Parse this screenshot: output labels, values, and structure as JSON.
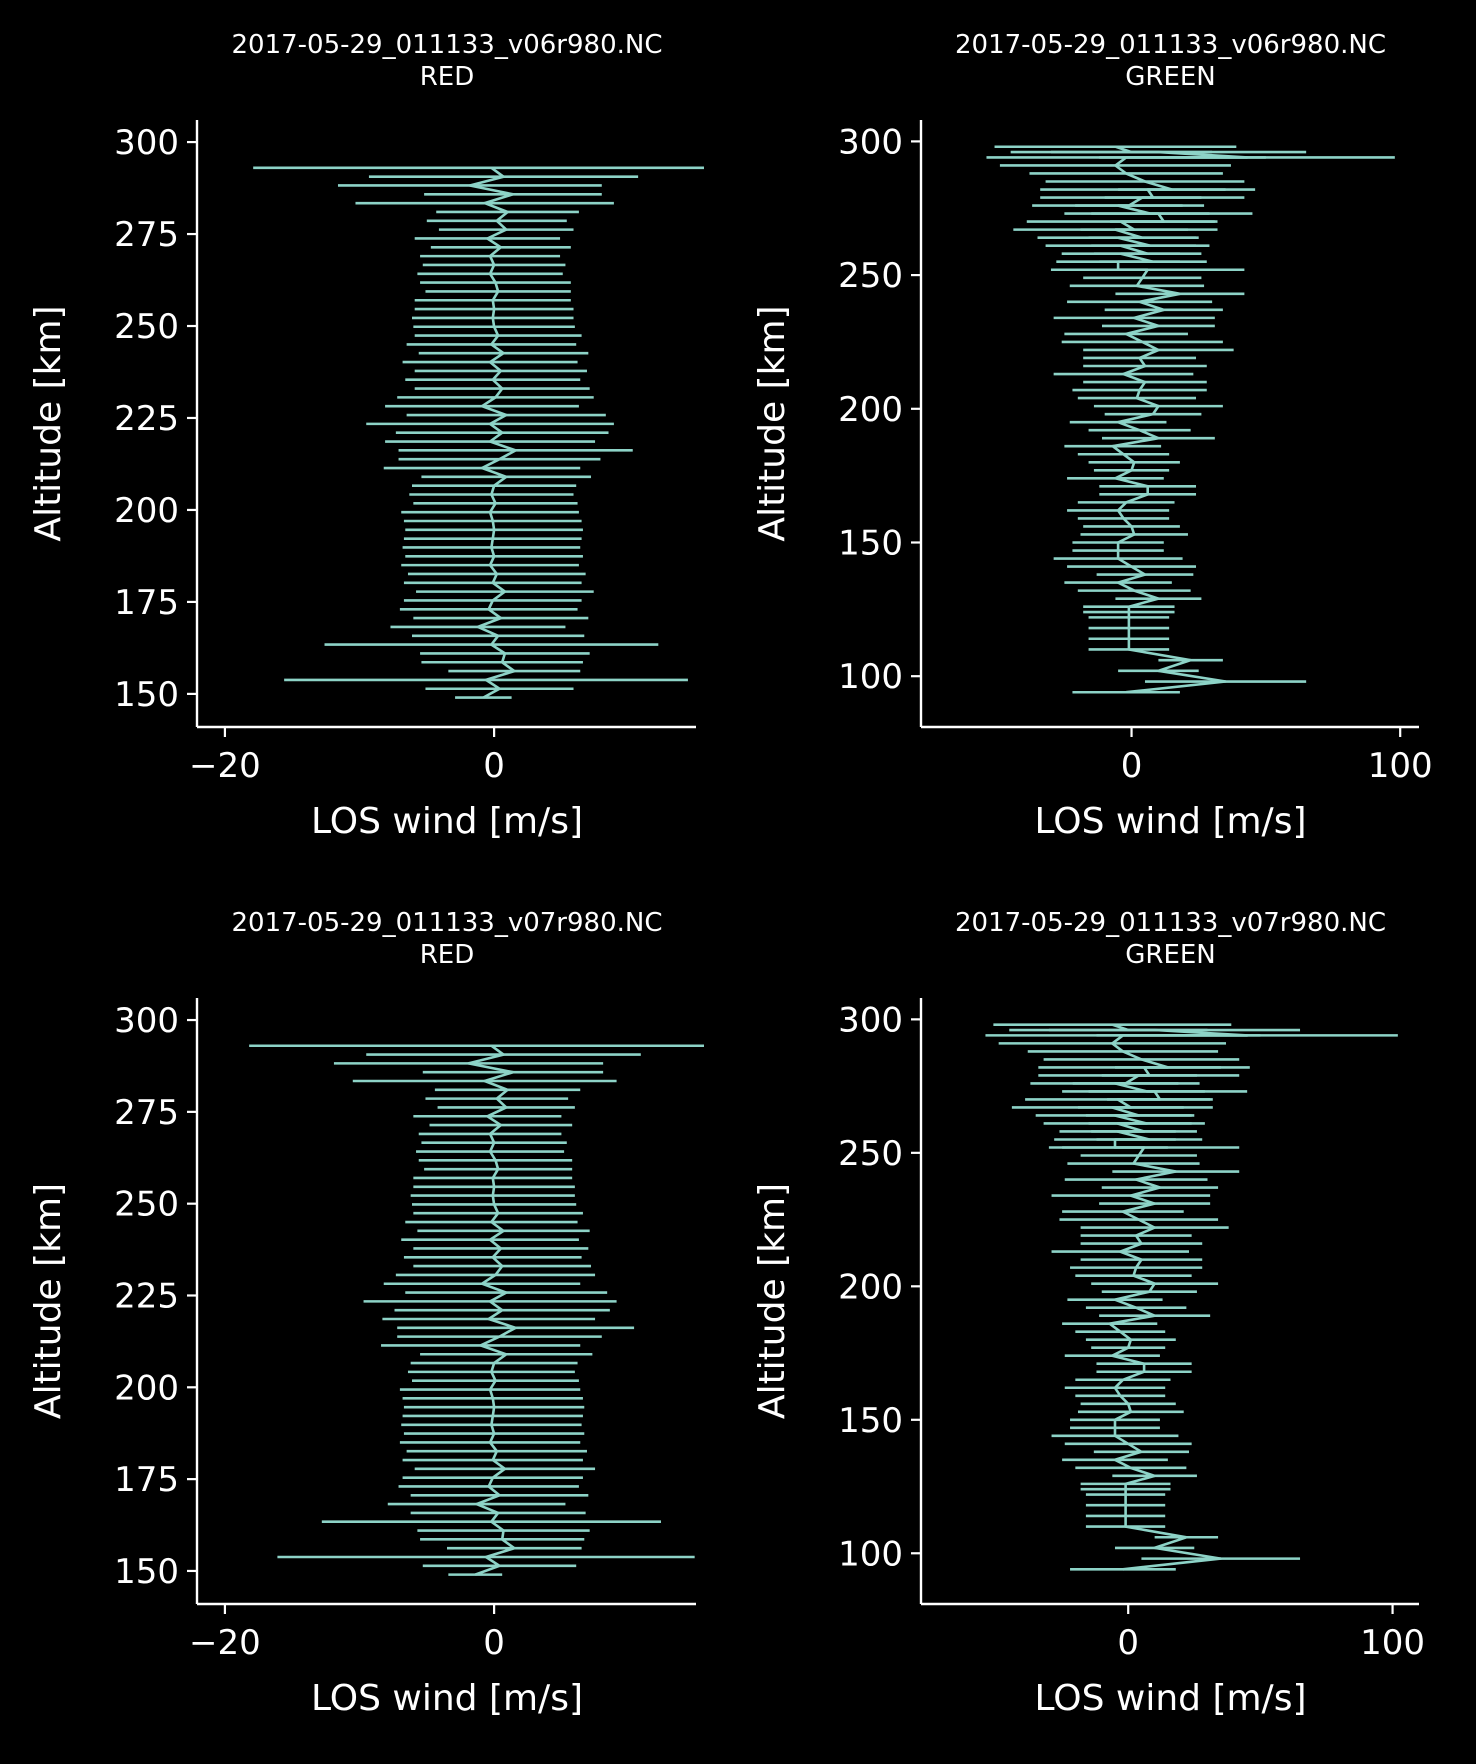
{
  "figure": {
    "background": "#000000",
    "foreground": "#ffffff",
    "line_color": "#8dd3c7"
  },
  "chart_data": [
    {
      "type": "line",
      "title": "2017-05-29_011133_v06r980.NC",
      "subtitle": "RED",
      "xlabel": "LOS wind [m/s]",
      "ylabel": "Altitude [km]",
      "xlim": [
        -22,
        15
      ],
      "ylim": [
        141,
        306
      ],
      "xticks": [
        -20,
        0
      ],
      "xtick_labels": [
        "−20",
        "0"
      ],
      "yticks": [
        150,
        175,
        200,
        225,
        250,
        275,
        300
      ],
      "ytick_labels": [
        "150",
        "175",
        "200",
        "225",
        "250",
        "275",
        "300"
      ],
      "grid": false,
      "series": [
        {
          "x": [
            -0.8,
            0.4,
            -0.6,
            1.5,
            0.6,
            0.8,
            -0.2,
            0.3,
            -1.2,
            0.5,
            -0.4,
            -0.1,
            0.8,
            -0.1,
            0.2,
            -0.3,
            0.0,
            -0.2,
            -0.1,
            0.0,
            -0.1,
            -0.3,
            0.1,
            -0.2,
            0.0,
            0.9,
            -0.9,
            0.4,
            1.6,
            -0.3,
            0.6,
            -0.3,
            0.9,
            -0.9,
            0.1,
            0.6,
            -0.1,
            0.5,
            -0.3,
            0.7,
            -0.2,
            0.3,
            0.0,
            -0.1,
            0.0,
            -0.1,
            0.3,
            0.1,
            -0.3,
            0.0,
            -0.3,
            0.5,
            -0.5,
            0.9,
            0.2,
            1.0,
            -0.7,
            1.4,
            -1.8,
            0.7,
            -0.2
          ],
          "y": [
            149,
            151.4,
            153.8,
            156.2,
            158.6,
            161,
            163.4,
            165.8,
            168.2,
            170.6,
            173,
            175.4,
            177.8,
            180.2,
            182.6,
            185,
            187.4,
            189.8,
            192.2,
            194.6,
            197,
            199.4,
            201.8,
            204.2,
            206.6,
            209,
            211.4,
            213.8,
            216.2,
            218.6,
            221,
            223.4,
            225.8,
            228.2,
            230.6,
            233,
            235.4,
            237.8,
            240.2,
            242.6,
            245,
            247.4,
            249.8,
            252.2,
            254.6,
            257,
            259.4,
            261.8,
            264.2,
            266.6,
            269,
            271.4,
            273.8,
            276.2,
            278.6,
            281,
            283.4,
            285.8,
            288.2,
            290.6,
            293
          ],
          "xerr": [
            2.1,
            5.5,
            15,
            4.9,
            6.0,
            6.3,
            12.4,
            6.4,
            6.5,
            6.5,
            6.6,
            6.6,
            6.6,
            6.6,
            6.6,
            6.6,
            6.6,
            6.6,
            6.6,
            6.6,
            6.6,
            6.6,
            6.1,
            6.1,
            6.1,
            6.3,
            7.3,
            7.5,
            8.7,
            7.8,
            7.9,
            9.2,
            7.4,
            7.2,
            7.3,
            6.5,
            6.5,
            6.4,
            6.5,
            6.3,
            6.3,
            6.2,
            6.0,
            6.0,
            5.9,
            5.8,
            5.4,
            5.6,
            5.4,
            5.3,
            5.2,
            5.2,
            5.4,
            5.0,
            5.2,
            5.3,
            9.6,
            6.6,
            9.8,
            10.0,
            17.7
          ]
        }
      ]
    },
    {
      "type": "line",
      "title": "2017-05-29_011133_v06r980.NC",
      "subtitle": "GREEN",
      "xlabel": "LOS wind [m/s]",
      "ylabel": "Altitude [km]",
      "xlim": [
        -78,
        107
      ],
      "ylim": [
        81,
        308
      ],
      "xticks": [
        0,
        100
      ],
      "xtick_labels": [
        "0",
        "100"
      ],
      "yticks": [
        100,
        150,
        200,
        250,
        300
      ],
      "ytick_labels": [
        "100",
        "150",
        "200",
        "250",
        "300"
      ],
      "grid": false,
      "series": [
        {
          "x": [
            -2,
            35,
            10,
            22,
            -1,
            -1,
            -1,
            -1,
            -1,
            -1,
            10,
            1,
            -5,
            5,
            0,
            -5,
            -5,
            -5,
            1,
            0,
            -3,
            -5,
            -2,
            6,
            6,
            -6,
            0,
            1,
            -3,
            -7,
            10,
            3,
            -5,
            8,
            10,
            2,
            3,
            5,
            -3,
            5,
            3,
            10,
            4,
            -2,
            10,
            1,
            12,
            3,
            18,
            2,
            4,
            6,
            -5,
            -4,
            -4,
            -5,
            -6,
            -4,
            10,
            -5,
            4,
            6,
            5,
            -2,
            -6,
            -2,
            10,
            -6,
            15,
            8,
            -1,
            7,
            12,
            1,
            4,
            7,
            6,
            8,
            -5,
            43,
            0
          ],
          "y": [
            94,
            98,
            102,
            106,
            110,
            114,
            118,
            122,
            124,
            126,
            129,
            132,
            135,
            138,
            141,
            144,
            147,
            150,
            153,
            156,
            159,
            162,
            165,
            168,
            171,
            174,
            177,
            180,
            183,
            186,
            189,
            192,
            195,
            198,
            201,
            204,
            207,
            210,
            213,
            216,
            219,
            222,
            225,
            228,
            231,
            234,
            237,
            240,
            243,
            246,
            249,
            252,
            255,
            258,
            261,
            264,
            267,
            270,
            273,
            276,
            279,
            282,
            285,
            288,
            291,
            294,
            296,
            298,
            282,
            279,
            276,
            273,
            270,
            267,
            264,
            261,
            258,
            255,
            252,
            294,
            296
          ],
          "xerr": [
            20,
            30,
            15,
            12,
            15,
            15,
            15,
            15,
            17,
            17,
            16,
            21,
            20,
            18,
            24,
            24,
            17,
            17,
            20,
            18,
            17,
            19,
            18,
            18,
            18,
            18,
            14,
            17,
            17,
            18,
            21,
            19,
            18,
            18,
            24,
            22,
            25,
            23,
            26,
            23,
            21,
            28,
            30,
            23,
            21,
            30,
            22,
            27,
            24,
            25,
            22,
            36,
            23,
            22,
            28,
            30,
            38,
            35,
            35,
            32,
            38,
            40,
            37,
            36,
            43,
            52,
            55,
            45,
            20,
            18,
            20,
            22,
            20,
            20,
            20,
            22,
            20,
            20,
            20,
            55,
            30
          ]
        }
      ]
    },
    {
      "type": "line",
      "title": "2017-05-29_011133_v07r980.NC",
      "subtitle": "RED",
      "xlabel": "LOS wind [m/s]",
      "ylabel": "Altitude [km]",
      "xlim": [
        -22,
        15
      ],
      "ylim": [
        141,
        306
      ],
      "xticks": [
        -20,
        0
      ],
      "xtick_labels": [
        "−20",
        "0"
      ],
      "yticks": [
        150,
        175,
        200,
        225,
        250,
        275,
        300
      ],
      "ytick_labels": [
        "150",
        "175",
        "200",
        "225",
        "250",
        "275",
        "300"
      ],
      "grid": false,
      "series": [
        {
          "x": [
            -1.4,
            0.4,
            -0.6,
            1.5,
            0.6,
            0.7,
            -0.2,
            0.3,
            -1.3,
            0.4,
            -0.4,
            -0.1,
            0.8,
            -0.1,
            0.2,
            -0.3,
            0.0,
            -0.2,
            -0.1,
            0.0,
            -0.1,
            -0.3,
            0.1,
            -0.2,
            0.0,
            0.9,
            -1.0,
            0.4,
            1.6,
            -0.4,
            0.6,
            -0.3,
            0.9,
            -0.9,
            0.1,
            0.6,
            -0.1,
            0.5,
            -0.3,
            0.7,
            -0.2,
            0.3,
            0.0,
            -0.1,
            0.0,
            -0.1,
            0.3,
            0.1,
            -0.3,
            0.0,
            -0.3,
            0.5,
            -0.5,
            0.9,
            0.2,
            1.0,
            -0.7,
            1.4,
            -1.9,
            0.7,
            -0.2
          ],
          "y": [
            149,
            151.4,
            153.8,
            156.2,
            158.6,
            161,
            163.4,
            165.8,
            168.2,
            170.6,
            173,
            175.4,
            177.8,
            180.2,
            182.6,
            185,
            187.4,
            189.8,
            192.2,
            194.6,
            197,
            199.4,
            201.8,
            204.2,
            206.6,
            209,
            211.4,
            213.8,
            216.2,
            218.6,
            221,
            223.4,
            225.8,
            228.2,
            230.6,
            233,
            235.4,
            237.8,
            240.2,
            242.6,
            245,
            247.4,
            249.8,
            252.2,
            254.6,
            257,
            259.4,
            261.8,
            264.2,
            266.6,
            269,
            271.4,
            273.8,
            276.2,
            278.6,
            281,
            283.4,
            285.8,
            288.2,
            290.6,
            293
          ],
          "xerr": [
            2.0,
            5.7,
            15.5,
            5.0,
            6.1,
            6.4,
            12.6,
            6.5,
            6.6,
            6.6,
            6.7,
            6.7,
            6.7,
            6.7,
            6.7,
            6.7,
            6.7,
            6.7,
            6.7,
            6.7,
            6.7,
            6.7,
            6.2,
            6.2,
            6.2,
            6.4,
            7.4,
            7.6,
            8.8,
            7.9,
            8.0,
            9.4,
            7.5,
            7.3,
            7.4,
            6.6,
            6.6,
            6.5,
            6.6,
            6.4,
            6.4,
            6.3,
            6.1,
            6.1,
            6.0,
            5.9,
            5.5,
            5.7,
            5.5,
            5.4,
            5.3,
            5.3,
            5.5,
            5.1,
            5.3,
            5.4,
            9.8,
            6.7,
            10.0,
            10.2,
            18.0
          ]
        }
      ]
    },
    {
      "type": "line",
      "title": "2017-05-29_011133_v07r980.NC",
      "subtitle": "GREEN",
      "xlabel": "LOS wind [m/s]",
      "ylabel": "Altitude [km]",
      "xlim": [
        -78,
        110
      ],
      "ylim": [
        81,
        308
      ],
      "xticks": [
        0,
        100
      ],
      "xtick_labels": [
        "0",
        "100"
      ],
      "yticks": [
        100,
        150,
        200,
        250,
        300
      ],
      "ytick_labels": [
        "100",
        "150",
        "200",
        "250",
        "300"
      ],
      "grid": false,
      "series": [
        {
          "x": [
            -2,
            35,
            10,
            22,
            -1,
            -1,
            -1,
            -1,
            -1,
            -1,
            10,
            1,
            -5,
            5,
            0,
            -5,
            -5,
            -5,
            1,
            0,
            -3,
            -5,
            -2,
            6,
            6,
            -6,
            0,
            1,
            -3,
            -7,
            10,
            3,
            -5,
            8,
            10,
            2,
            3,
            5,
            -3,
            5,
            3,
            10,
            4,
            -2,
            10,
            1,
            12,
            3,
            18,
            2,
            4,
            6,
            -5,
            -4,
            -4,
            -5,
            -6,
            -4,
            10,
            -5,
            4,
            6,
            5,
            -2,
            -6,
            -2,
            10,
            -6,
            15,
            8,
            -1,
            7,
            12,
            1,
            4,
            7,
            6,
            8,
            -5,
            45,
            0
          ],
          "y": [
            94,
            98,
            102,
            106,
            110,
            114,
            118,
            122,
            124,
            126,
            129,
            132,
            135,
            138,
            141,
            144,
            147,
            150,
            153,
            156,
            159,
            162,
            165,
            168,
            171,
            174,
            177,
            180,
            183,
            186,
            189,
            192,
            195,
            198,
            201,
            204,
            207,
            210,
            213,
            216,
            219,
            222,
            225,
            228,
            231,
            234,
            237,
            240,
            243,
            246,
            249,
            252,
            255,
            258,
            261,
            264,
            267,
            270,
            273,
            276,
            279,
            282,
            285,
            288,
            291,
            294,
            296,
            298,
            282,
            279,
            276,
            273,
            270,
            267,
            264,
            261,
            258,
            255,
            252,
            294,
            296
          ],
          "xerr": [
            20,
            30,
            15,
            12,
            15,
            15,
            15,
            15,
            17,
            17,
            16,
            21,
            20,
            18,
            24,
            24,
            17,
            17,
            20,
            18,
            17,
            19,
            18,
            18,
            18,
            18,
            14,
            17,
            17,
            18,
            21,
            19,
            18,
            18,
            24,
            22,
            25,
            23,
            26,
            23,
            21,
            28,
            30,
            23,
            21,
            30,
            22,
            27,
            24,
            25,
            22,
            36,
            23,
            22,
            28,
            30,
            38,
            35,
            35,
            32,
            38,
            40,
            37,
            36,
            43,
            52,
            55,
            45,
            20,
            18,
            20,
            22,
            20,
            20,
            20,
            22,
            20,
            20,
            20,
            57,
            30
          ]
        }
      ]
    }
  ]
}
